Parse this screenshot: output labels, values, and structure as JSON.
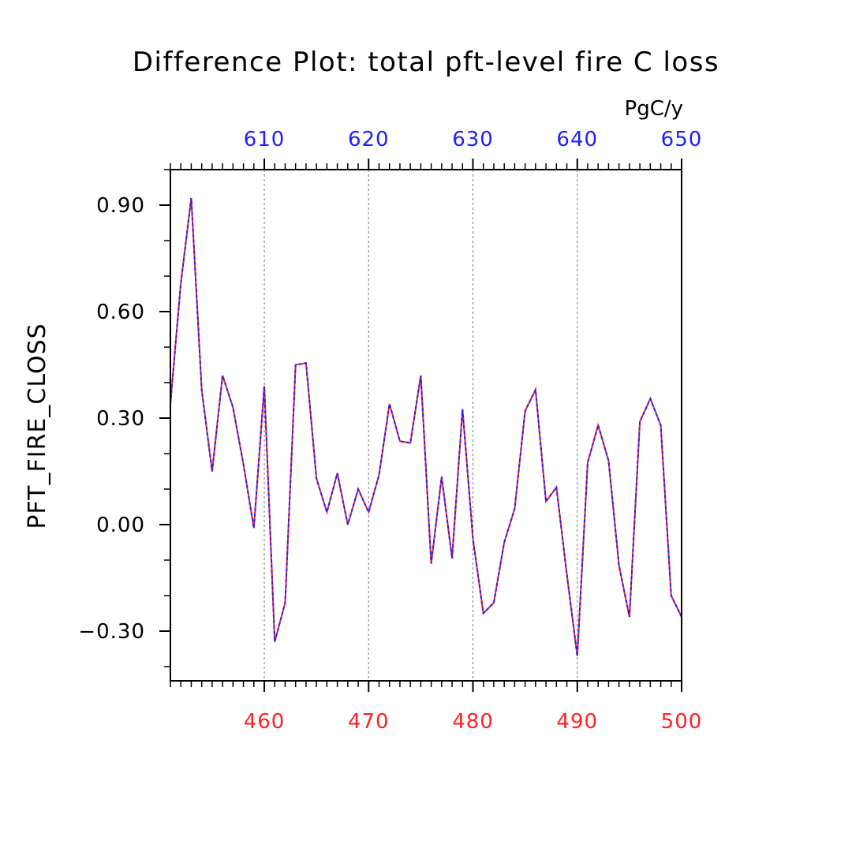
{
  "chart_data": {
    "type": "line",
    "title": "Difference Plot: total pft-level fire C loss",
    "units": "PgC/y",
    "ylabel": "PFT_FIRE_CLOSS",
    "xlabel": "",
    "ylim": [
      -0.44,
      1.0
    ],
    "bottom_axis": {
      "range": [
        451,
        500
      ],
      "ticks": [
        460,
        470,
        480,
        490,
        500
      ],
      "tick_labels": [
        "460",
        "470",
        "480",
        "490",
        "500"
      ],
      "color": "#ff2020"
    },
    "top_axis": {
      "range": [
        601,
        650
      ],
      "ticks": [
        610,
        620,
        630,
        640,
        650
      ],
      "tick_labels": [
        "610",
        "620",
        "630",
        "640",
        "650"
      ],
      "color": "#2020ff"
    },
    "y_ticks": [
      -0.3,
      0.0,
      0.3,
      0.6,
      0.9
    ],
    "y_tick_labels": [
      "−0.30",
      "0.00",
      "0.30",
      "0.60",
      "0.90"
    ],
    "grid": "vertical dashed lines at major x ticks",
    "x": [
      451,
      452,
      453,
      454,
      455,
      456,
      457,
      458,
      459,
      460,
      461,
      462,
      463,
      464,
      465,
      466,
      467,
      468,
      469,
      470,
      471,
      472,
      473,
      474,
      475,
      476,
      477,
      478,
      479,
      480,
      481,
      482,
      483,
      484,
      485,
      486,
      487,
      488,
      489,
      490,
      491,
      492,
      493,
      494,
      495,
      496,
      497,
      498,
      499,
      500
    ],
    "series": [
      {
        "color": "#ff2020",
        "style": "solid",
        "values": [
          0.34,
          0.68,
          0.92,
          0.38,
          0.15,
          0.42,
          0.33,
          0.17,
          -0.01,
          0.39,
          -0.33,
          -0.22,
          0.45,
          0.455,
          0.13,
          0.035,
          0.145,
          0.0,
          0.1,
          0.035,
          0.14,
          0.34,
          0.235,
          0.23,
          0.42,
          -0.11,
          0.135,
          -0.095,
          0.325,
          -0.04,
          -0.25,
          -0.22,
          -0.05,
          0.045,
          0.32,
          0.38,
          0.065,
          0.105,
          -0.14,
          -0.37,
          0.175,
          0.28,
          0.18,
          -0.115,
          -0.26,
          0.29,
          0.355,
          0.28,
          -0.2,
          -0.26
        ]
      },
      {
        "color": "#2020ff",
        "style": "dashed",
        "values": [
          0.34,
          0.68,
          0.92,
          0.38,
          0.15,
          0.42,
          0.33,
          0.17,
          -0.01,
          0.39,
          -0.33,
          -0.22,
          0.45,
          0.455,
          0.13,
          0.035,
          0.145,
          0.0,
          0.1,
          0.035,
          0.14,
          0.34,
          0.235,
          0.23,
          0.42,
          -0.11,
          0.135,
          -0.095,
          0.325,
          -0.04,
          -0.25,
          -0.22,
          -0.05,
          0.045,
          0.32,
          0.38,
          0.065,
          0.105,
          -0.14,
          -0.37,
          0.175,
          0.28,
          0.18,
          -0.115,
          -0.26,
          0.29,
          0.355,
          0.28,
          -0.2,
          -0.26
        ]
      }
    ]
  }
}
